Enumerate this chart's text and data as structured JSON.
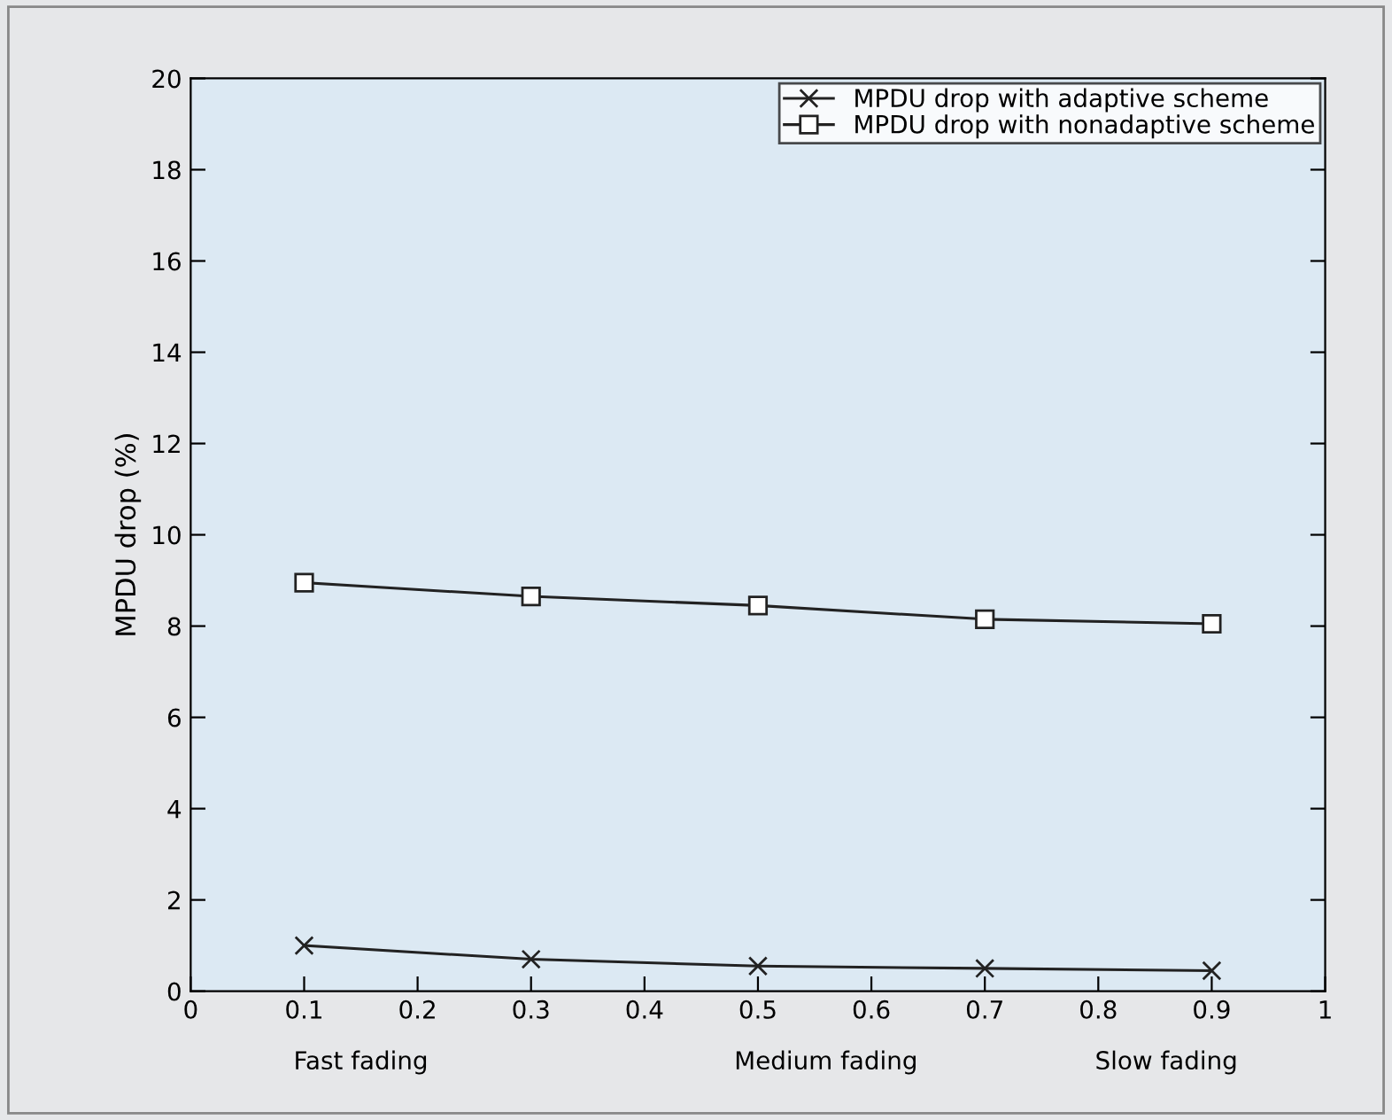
{
  "chart_data": {
    "type": "line",
    "ylabel": "MPDU drop (%)",
    "x": [
      0.1,
      0.3,
      0.5,
      0.7,
      0.9
    ],
    "series": [
      {
        "name": "MPDU drop with adaptive scheme",
        "color": "#222222",
        "marker": "cross",
        "values": [
          1.0,
          0.7,
          0.55,
          0.5,
          0.45
        ]
      },
      {
        "name": "MPDU drop with nonadaptive scheme",
        "color": "#222222",
        "marker": "square",
        "values": [
          8.95,
          8.65,
          8.45,
          8.15,
          8.05
        ]
      }
    ],
    "xlim": [
      0,
      1
    ],
    "xticks": [
      0,
      0.1,
      0.2,
      0.3,
      0.4,
      0.5,
      0.6,
      0.7,
      0.8,
      0.9,
      1
    ],
    "ylim": [
      0,
      20
    ],
    "yticks": [
      0,
      2,
      4,
      6,
      8,
      10,
      12,
      14,
      16,
      18,
      20
    ],
    "annotations": [
      "Fast fading",
      "Medium fading",
      "Slow fading"
    ],
    "grid": false,
    "legend": "top right",
    "line_style": "solid"
  }
}
